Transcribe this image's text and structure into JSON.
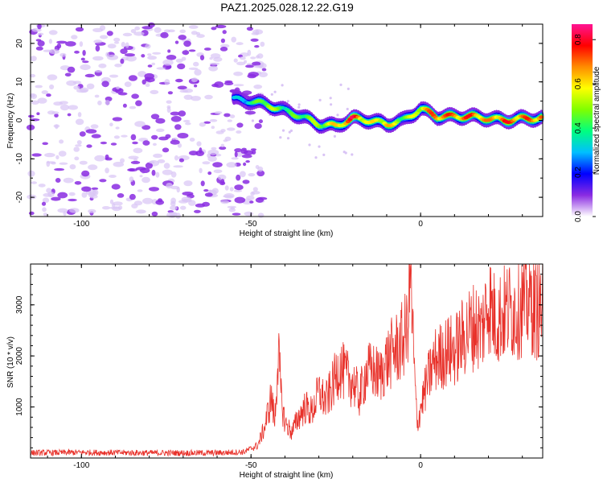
{
  "title": "PAZ1.2025.028.12.22.G19",
  "colors": {
    "snr_line": "#e8312a",
    "axis": "#000000",
    "spectrum_background": "#ffffff",
    "noise_main": "#8a2be2",
    "noise_light": "#d9c4f5"
  },
  "chart_data": [
    {
      "type": "heatmap",
      "title": "PAZ1.2025.028.12.22.G19",
      "xlabel": "Height of straight line (km)",
      "ylabel": "Frequency (Hz)",
      "xlim": [
        -115,
        36
      ],
      "ylim": [
        -25,
        25
      ],
      "x_ticks": [
        -100,
        -50,
        0
      ],
      "x_tick_labels": [
        "-100",
        "-50",
        "0"
      ],
      "y_ticks": [
        -20,
        -10,
        0,
        10,
        20
      ],
      "y_tick_labels": [
        "-20",
        "-10",
        "0",
        "10",
        "20"
      ],
      "colorbar": {
        "label": "Normalized spectral amplitude",
        "range": [
          0.0,
          0.87
        ],
        "ticks": [
          0.0,
          0.2,
          0.4,
          0.6,
          0.8
        ],
        "tick_labels": [
          "0.0",
          "0.2",
          "0.4",
          "0.6",
          "0.8"
        ],
        "colormap": [
          "#ffffff",
          "#8a2be2",
          "#0000ff",
          "#00bfff",
          "#00ff7f",
          "#7fff00",
          "#ffff00",
          "#ff8c00",
          "#ff0000",
          "#ff1493"
        ]
      },
      "signal_track": {
        "x": [
          -55,
          -50,
          -45,
          -40,
          -35,
          -30,
          -25,
          -20,
          -15,
          -10,
          -5,
          0,
          5,
          10,
          15,
          20,
          25,
          30,
          36
        ],
        "center_hz": [
          5.5,
          5,
          4,
          2.5,
          1,
          -1,
          -1.5,
          0.5,
          0,
          -1,
          0,
          3,
          1,
          1,
          1,
          0.5,
          0,
          0.5,
          0.5
        ],
        "peak_amplitude": [
          0.3,
          0.4,
          0.6,
          0.45,
          0.5,
          0.55,
          0.65,
          0.85,
          0.6,
          0.7,
          0.5,
          0.65,
          0.8,
          0.75,
          0.8,
          0.7,
          0.8,
          0.75,
          0.8
        ]
      },
      "noise_region_x": [
        -115,
        -50
      ]
    },
    {
      "type": "line",
      "title": "",
      "xlabel": "Height of straight line (km)",
      "ylabel": "SNR (10 * v/v)",
      "xlim": [
        -115,
        36
      ],
      "ylim": [
        0,
        3800
      ],
      "x_ticks": [
        -100,
        -50,
        0
      ],
      "x_tick_labels": [
        "-100",
        "-50",
        "0"
      ],
      "y_ticks": [
        1000,
        2000,
        3000
      ],
      "y_tick_labels": [
        "1000",
        "2000",
        "3000"
      ],
      "series": [
        {
          "x": [
            -115,
            -100,
            -80,
            -60,
            -52,
            -48,
            -46,
            -44,
            -43,
            -42,
            -41,
            -40,
            -38,
            -36,
            -34,
            -32,
            -30,
            -28,
            -26,
            -24,
            -22,
            -20,
            -18,
            -16,
            -14,
            -12,
            -10,
            -8,
            -6,
            -4,
            -3,
            -2,
            -1,
            0,
            2,
            4,
            6,
            8,
            10,
            12,
            14,
            16,
            18,
            20,
            22,
            24,
            26,
            28,
            30,
            32,
            34,
            36
          ],
          "y": [
            100,
            110,
            100,
            100,
            120,
            250,
            600,
            1200,
            700,
            2100,
            1100,
            700,
            500,
            800,
            1000,
            900,
            1300,
            1100,
            1400,
            1800,
            1600,
            1500,
            1200,
            1700,
            1700,
            1600,
            1900,
            2100,
            2200,
            2500,
            3700,
            1900,
            600,
            1000,
            1500,
            1900,
            2000,
            2100,
            2100,
            2300,
            2500,
            2600,
            2500,
            3100,
            2700,
            2800,
            2900,
            2900,
            3000,
            3100,
            2900,
            3000
          ]
        }
      ]
    }
  ]
}
